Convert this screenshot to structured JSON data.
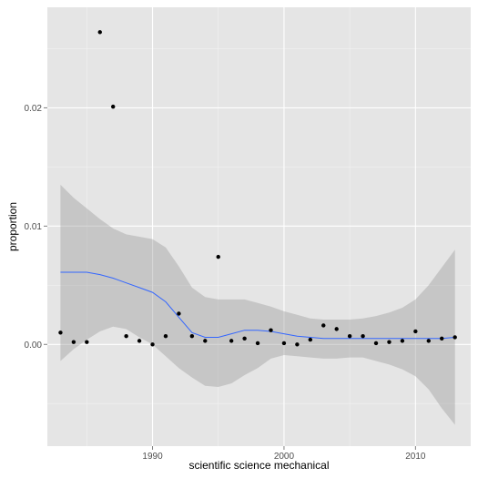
{
  "chart_data": {
    "type": "scatter",
    "title": "",
    "xlabel": "scientific science mechanical",
    "ylabel": "proportion",
    "xlim": [
      1982.0,
      2014.2
    ],
    "ylim": [
      -0.0086,
      0.0285
    ],
    "x_ticks": [
      1990,
      2000,
      2010
    ],
    "x_tick_labels": [
      "1990",
      "2000",
      "2010"
    ],
    "y_ticks": [
      0.0,
      0.01,
      0.02
    ],
    "y_tick_labels": [
      "0.00",
      "0.01",
      "0.02"
    ],
    "grid": true,
    "legend": "none",
    "colors": {
      "panel": "#e5e5e5",
      "grid_major": "#ffffff",
      "grid_minor": "#f2f2f2",
      "points": "#000000",
      "smooth_line": "#3366ff",
      "ribbon": "#999999"
    },
    "points": [
      {
        "x": 1983,
        "y": 0.001
      },
      {
        "x": 1984,
        "y": 0.0002
      },
      {
        "x": 1985,
        "y": 0.0002
      },
      {
        "x": 1986,
        "y": 0.0264
      },
      {
        "x": 1987,
        "y": 0.0201
      },
      {
        "x": 1988,
        "y": 0.0007
      },
      {
        "x": 1989,
        "y": 0.0003
      },
      {
        "x": 1990,
        "y": 0.0
      },
      {
        "x": 1991,
        "y": 0.0007
      },
      {
        "x": 1992,
        "y": 0.0026
      },
      {
        "x": 1993,
        "y": 0.0007
      },
      {
        "x": 1994,
        "y": 0.0003
      },
      {
        "x": 1995,
        "y": 0.0074
      },
      {
        "x": 1996,
        "y": 0.0003
      },
      {
        "x": 1997,
        "y": 0.0005
      },
      {
        "x": 1998,
        "y": 0.0001
      },
      {
        "x": 1999,
        "y": 0.0012
      },
      {
        "x": 2000,
        "y": 0.0001
      },
      {
        "x": 2001,
        "y": 0.0
      },
      {
        "x": 2002,
        "y": 0.0004
      },
      {
        "x": 2003,
        "y": 0.0016
      },
      {
        "x": 2004,
        "y": 0.0013
      },
      {
        "x": 2005,
        "y": 0.0007
      },
      {
        "x": 2006,
        "y": 0.0007
      },
      {
        "x": 2007,
        "y": 0.0001
      },
      {
        "x": 2008,
        "y": 0.0002
      },
      {
        "x": 2009,
        "y": 0.0003
      },
      {
        "x": 2010,
        "y": 0.0011
      },
      {
        "x": 2011,
        "y": 0.0003
      },
      {
        "x": 2012,
        "y": 0.0005
      },
      {
        "x": 2013,
        "y": 0.0006
      }
    ],
    "smooth": {
      "x": [
        1983,
        1984,
        1985,
        1986,
        1987,
        1988,
        1989,
        1990,
        1991,
        1992,
        1993,
        1994,
        1995,
        1996,
        1997,
        1998,
        1999,
        2000,
        2001,
        2002,
        2003,
        2004,
        2005,
        2006,
        2007,
        2008,
        2009,
        2010,
        2011,
        2012,
        2013
      ],
      "y": [
        0.0061,
        0.0061,
        0.0061,
        0.0059,
        0.0056,
        0.0052,
        0.0048,
        0.0044,
        0.0036,
        0.0023,
        0.001,
        0.0006,
        0.0006,
        0.0009,
        0.0012,
        0.0012,
        0.0011,
        0.0009,
        0.0007,
        0.0006,
        0.0005,
        0.0005,
        0.0005,
        0.0005,
        0.0005,
        0.0005,
        0.0005,
        0.0005,
        0.0005,
        0.0005,
        0.0006
      ],
      "upper": [
        0.0135,
        0.0124,
        0.0115,
        0.0106,
        0.0098,
        0.0093,
        0.0091,
        0.0089,
        0.0082,
        0.0066,
        0.0048,
        0.004,
        0.0038,
        0.0038,
        0.0038,
        0.0035,
        0.0032,
        0.0028,
        0.0025,
        0.0022,
        0.0021,
        0.0021,
        0.0021,
        0.0022,
        0.0024,
        0.0027,
        0.0031,
        0.0038,
        0.005,
        0.0065,
        0.008
      ],
      "lower": [
        -0.0014,
        -0.0004,
        0.0004,
        0.0011,
        0.0015,
        0.0013,
        0.0006,
        0.0,
        -0.001,
        -0.002,
        -0.0028,
        -0.0035,
        -0.0036,
        -0.0033,
        -0.0026,
        -0.002,
        -0.0012,
        -0.0009,
        -0.001,
        -0.0011,
        -0.0012,
        -0.0012,
        -0.0011,
        -0.0011,
        -0.0014,
        -0.0017,
        -0.0021,
        -0.0027,
        -0.0038,
        -0.0054,
        -0.0068
      ]
    }
  }
}
